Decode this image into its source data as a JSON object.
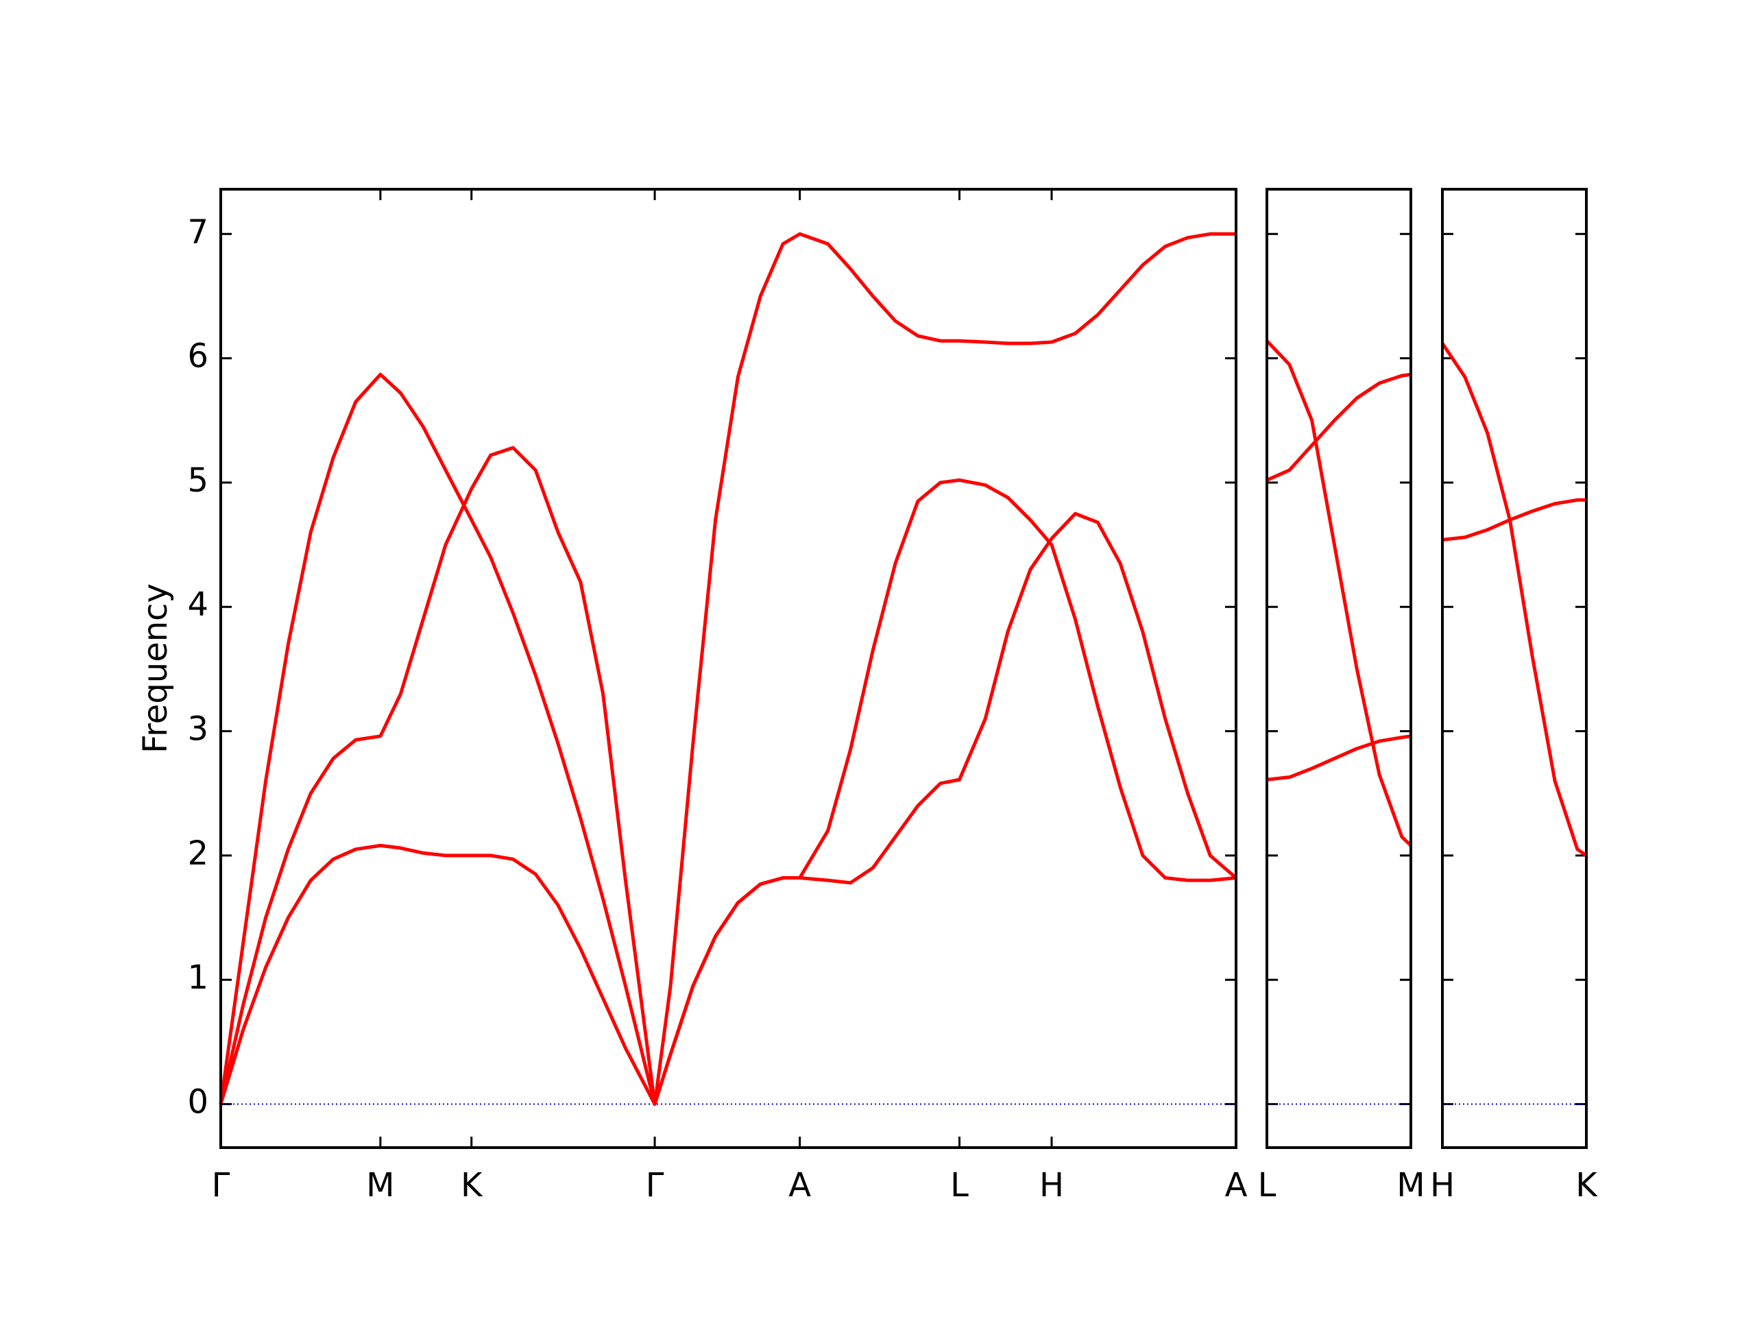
{
  "chart_data": [
    {
      "type": "line",
      "ylabel": "Frequency",
      "x": [
        0,
        0.2,
        0.4,
        0.6,
        0.8,
        1.0,
        1.2,
        1.42,
        1.6,
        1.8,
        2.0,
        2.23,
        2.4,
        2.6,
        2.8,
        3.0,
        3.2,
        3.4,
        3.6,
        3.86,
        4.0,
        4.2,
        4.4,
        4.6,
        4.8,
        5.0,
        5.15,
        5.4,
        5.6,
        5.8,
        6.0,
        6.2,
        6.4,
        6.57,
        6.8,
        7.0,
        7.2,
        7.39,
        7.6,
        7.8,
        8.0,
        8.2,
        8.4,
        8.6,
        8.8,
        9.03
      ],
      "xlim": [
        0,
        9.03
      ],
      "xticks": [
        {
          "value": 0,
          "label": "Γ"
        },
        {
          "value": 1.42,
          "label": "M"
        },
        {
          "value": 2.23,
          "label": "K"
        },
        {
          "value": 3.86,
          "label": "Γ"
        },
        {
          "value": 5.15,
          "label": "A"
        },
        {
          "value": 6.57,
          "label": "L"
        },
        {
          "value": 7.39,
          "label": "H"
        },
        {
          "value": 9.03,
          "label": "A"
        }
      ],
      "ylim": [
        -0.35,
        7.36
      ],
      "yticks": [
        0,
        1,
        2,
        3,
        4,
        5,
        6,
        7
      ],
      "hline": 0,
      "hline_color": "#0000ff",
      "series": [
        {
          "color": "#ff0000",
          "values": [
            0,
            1.3,
            2.6,
            3.7,
            4.6,
            5.2,
            5.65,
            5.87,
            5.72,
            5.45,
            5.1,
            4.7,
            4.4,
            3.95,
            3.45,
            2.9,
            2.3,
            1.65,
            0.95,
            0,
            0.95,
            2.9,
            4.7,
            5.85,
            6.5,
            6.92,
            7.0,
            6.92,
            6.72,
            6.5,
            6.3,
            6.18,
            6.14,
            6.14,
            6.13,
            6.12,
            6.12,
            6.13,
            6.2,
            6.35,
            6.55,
            6.75,
            6.9,
            6.97,
            7.0,
            7.0
          ]
        },
        {
          "color": "#ff0000",
          "values": [
            0,
            0.8,
            1.5,
            2.05,
            2.5,
            2.78,
            2.93,
            2.96,
            3.3,
            3.9,
            4.5,
            4.95,
            5.22,
            5.28,
            5.1,
            4.6,
            4.2,
            3.3,
            1.8,
            0,
            0.4,
            0.95,
            1.35,
            1.62,
            1.77,
            1.82,
            1.82,
            2.2,
            2.85,
            3.65,
            4.35,
            4.85,
            5.0,
            5.02,
            4.98,
            4.88,
            4.7,
            4.5,
            3.9,
            3.2,
            2.55,
            2.0,
            1.82,
            1.8,
            1.8,
            1.82
          ]
        },
        {
          "color": "#ff0000",
          "values": [
            0,
            0.6,
            1.1,
            1.5,
            1.8,
            1.97,
            2.05,
            2.08,
            2.06,
            2.02,
            2.0,
            2.0,
            2.0,
            1.97,
            1.85,
            1.6,
            1.25,
            0.85,
            0.45,
            0,
            0.4,
            0.95,
            1.35,
            1.62,
            1.77,
            1.82,
            1.82,
            1.8,
            1.78,
            1.9,
            2.15,
            2.4,
            2.58,
            2.61,
            3.1,
            3.8,
            4.3,
            4.55,
            4.75,
            4.68,
            4.35,
            3.8,
            3.1,
            2.5,
            2.0,
            1.82
          ]
        }
      ]
    },
    {
      "type": "line",
      "x": [
        0,
        0.2,
        0.4,
        0.6,
        0.8,
        1.0,
        1.2,
        1.28
      ],
      "xlim": [
        0,
        1.28
      ],
      "xticks": [
        {
          "value": 0,
          "label": "L"
        },
        {
          "value": 1.28,
          "label": "M"
        }
      ],
      "ylim": [
        -0.35,
        7.36
      ],
      "hline": 0,
      "hline_color": "#0000ff",
      "series": [
        {
          "color": "#ff0000",
          "values": [
            6.14,
            5.95,
            5.5,
            4.5,
            3.5,
            2.65,
            2.15,
            2.08
          ]
        },
        {
          "color": "#ff0000",
          "values": [
            5.02,
            5.1,
            5.3,
            5.5,
            5.68,
            5.8,
            5.86,
            5.87
          ]
        },
        {
          "color": "#ff0000",
          "values": [
            2.61,
            2.63,
            2.7,
            2.78,
            2.86,
            2.92,
            2.95,
            2.96
          ]
        }
      ]
    },
    {
      "type": "line",
      "x": [
        0,
        0.2,
        0.4,
        0.6,
        0.8,
        1.0,
        1.2,
        1.28
      ],
      "xlim": [
        0,
        1.28
      ],
      "xticks": [
        {
          "value": 0,
          "label": "H"
        },
        {
          "value": 1.28,
          "label": "K"
        }
      ],
      "ylim": [
        -0.35,
        7.36
      ],
      "hline": 0,
      "hline_color": "#0000ff",
      "series": [
        {
          "color": "#ff0000",
          "values": [
            6.12,
            5.85,
            5.4,
            4.7,
            3.6,
            2.6,
            2.05,
            2.0
          ]
        },
        {
          "color": "#ff0000",
          "values": [
            4.54,
            4.56,
            4.62,
            4.7,
            4.77,
            4.83,
            4.86,
            4.86
          ]
        }
      ]
    }
  ]
}
